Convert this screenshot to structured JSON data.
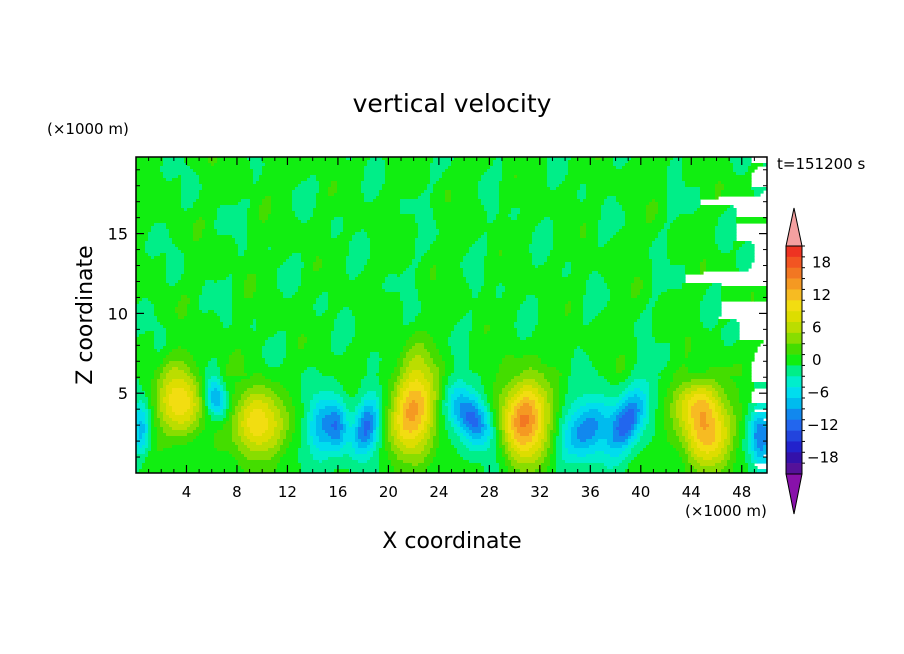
{
  "chart_data": {
    "type": "heatmap",
    "title": "vertical velocity",
    "time_label": "t=151200 s",
    "xlabel": "X coordinate",
    "ylabel": "Z coordinate",
    "x_unit": "(×1000 m)",
    "y_unit": "(×1000 m)",
    "xlim": [
      0,
      50
    ],
    "ylim": [
      0,
      19.8
    ],
    "x_ticks": [
      4,
      8,
      12,
      16,
      20,
      24,
      28,
      32,
      36,
      40,
      44,
      48
    ],
    "y_ticks": [
      5,
      10,
      15
    ],
    "colorbar": {
      "ticks": [
        18,
        12,
        6,
        0,
        -6,
        -12,
        -18
      ],
      "levels_top_to_bottom": [
        20,
        18,
        16,
        14,
        12,
        10,
        8,
        6,
        4,
        2,
        0,
        -2,
        -4,
        -6,
        -8,
        -10,
        -12,
        -14,
        -16,
        -18,
        -20
      ],
      "colors": [
        "#ee3322",
        "#f25522",
        "#f27722",
        "#f59922",
        "#f7bb22",
        "#f2dd11",
        "#dddd00",
        "#bbdd00",
        "#88dd00",
        "#44dd00",
        "#11ee11",
        "#00ee88",
        "#00eecc",
        "#00ddee",
        "#00bbee",
        "#1188ee",
        "#2266ee",
        "#2244dd",
        "#2222cc",
        "#3311aa",
        "#551199"
      ],
      "over_color": "#f4a0a0",
      "under_color": "#8811aa"
    },
    "features": [
      {
        "x": 3.5,
        "z": 4.5,
        "amplitude": 11,
        "sx": 1.3,
        "sz": 1.6,
        "tilt": 0.05
      },
      {
        "x": 6.3,
        "z": 4.7,
        "amplitude": -9,
        "sx": 0.6,
        "sz": 0.9,
        "tilt": -0.2
      },
      {
        "x": 9.7,
        "z": 3.1,
        "amplitude": 12,
        "sx": 1.4,
        "sz": 1.5,
        "tilt": 0
      },
      {
        "x": 14.6,
        "z": 2.9,
        "amplitude": -7,
        "sx": 0.8,
        "sz": 1.4,
        "tilt": 0
      },
      {
        "x": 16.0,
        "z": 2.8,
        "amplitude": -9,
        "sx": 0.6,
        "sz": 1.1,
        "tilt": 0
      },
      {
        "x": 18.3,
        "z": 3.0,
        "amplitude": -11,
        "sx": 0.7,
        "sz": 1.4,
        "tilt": 0.2
      },
      {
        "x": 22.0,
        "z": 4.0,
        "amplitude": 14,
        "sx": 1.3,
        "sz": 2.1,
        "tilt": 0.1
      },
      {
        "x": 26.6,
        "z": 3.5,
        "amplitude": -12,
        "sx": 1.1,
        "sz": 1.3,
        "tilt": -0.5
      },
      {
        "x": 30.8,
        "z": 3.3,
        "amplitude": 16,
        "sx": 1.4,
        "sz": 1.8,
        "tilt": 0
      },
      {
        "x": 35.7,
        "z": 2.8,
        "amplitude": -10,
        "sx": 1.3,
        "sz": 1.3,
        "tilt": 0.25
      },
      {
        "x": 38.9,
        "z": 3.2,
        "amplitude": -11,
        "sx": 0.9,
        "sz": 1.5,
        "tilt": 0.5
      },
      {
        "x": 45.2,
        "z": 2.7,
        "amplitude": 13,
        "sx": 1.4,
        "sz": 1.7,
        "tilt": 0
      },
      {
        "x": 44.2,
        "z": 4.6,
        "amplitude": 6,
        "sx": 1.2,
        "sz": 1.0,
        "tilt": 0
      },
      {
        "x": 49.5,
        "z": 2.3,
        "amplitude": -10,
        "sx": 0.6,
        "sz": 1.3,
        "tilt": 0
      },
      {
        "x": 0.4,
        "z": 2.8,
        "amplitude": -7,
        "sx": 0.5,
        "sz": 1.2,
        "tilt": 0
      }
    ]
  }
}
